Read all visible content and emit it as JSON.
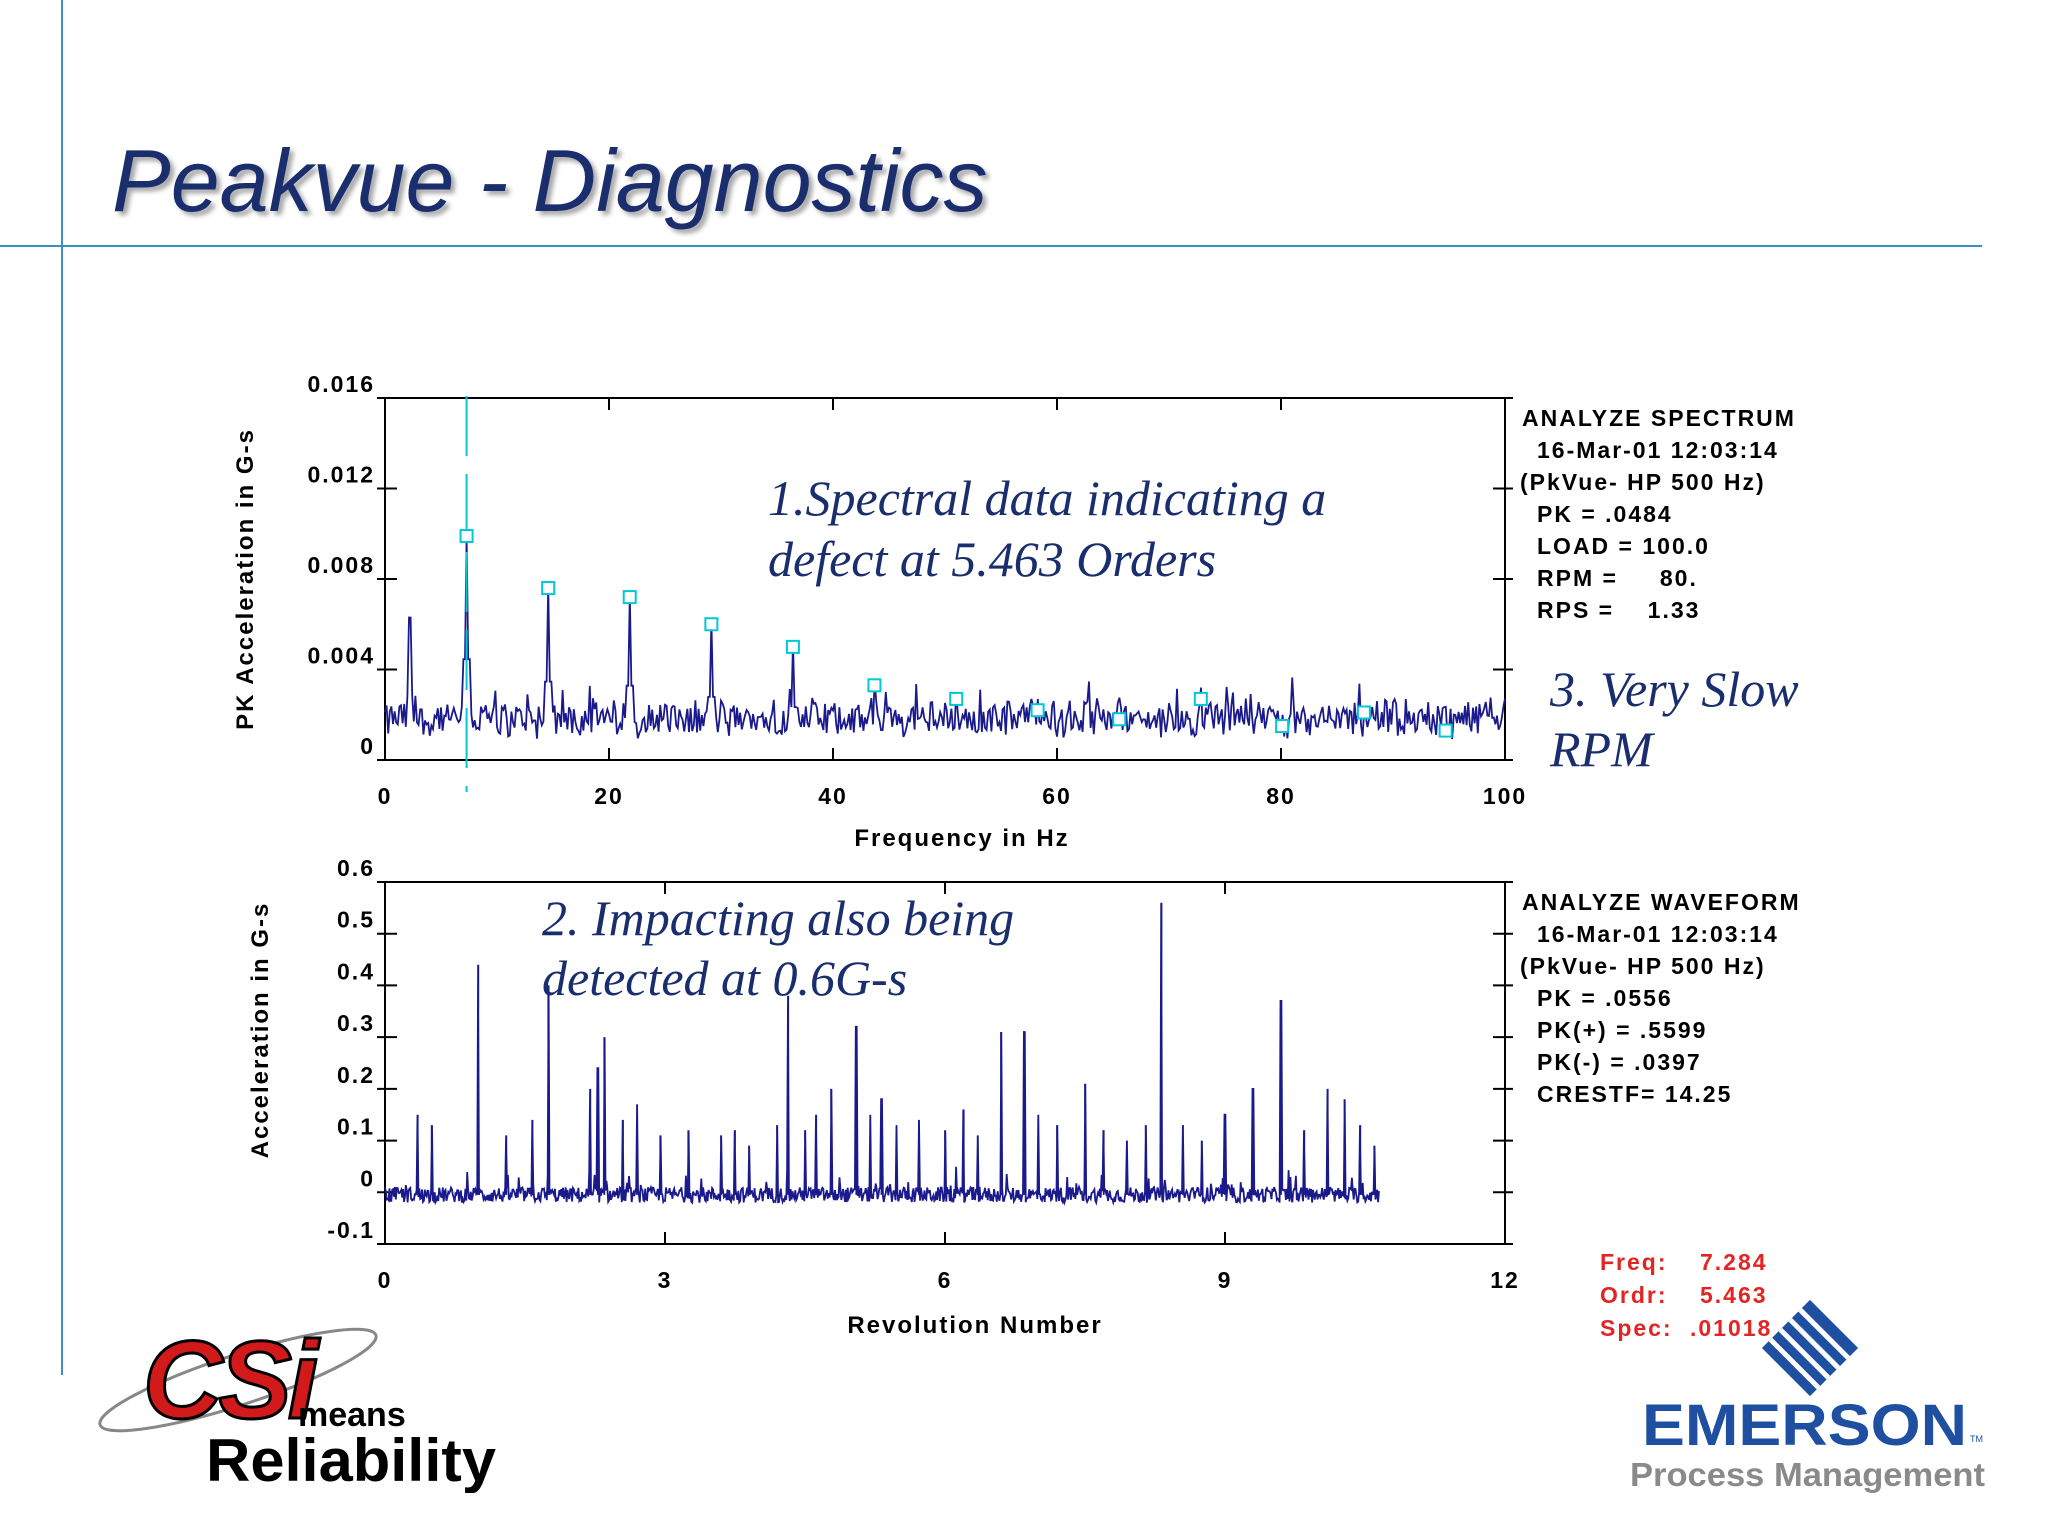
{
  "slide": {
    "title": "Peakvue - Diagnostics"
  },
  "annotations": {
    "spectral": [
      "1.Spectral data indicating a",
      "defect at 5.463 Orders"
    ],
    "impacting": [
      "2. Impacting also being",
      "detected at 0.6G-s"
    ],
    "rpm": [
      "3. Very Slow",
      "RPM"
    ]
  },
  "spectrum_info": [
    "ANALYZE SPECTRUM",
    "16-Mar-01   12:03:14",
    "(PkVue- HP 500 Hz)",
    "PK  =  .0484",
    "LOAD = 100.0",
    "RPM =     80.",
    "RPS =    1.33"
  ],
  "waveform_info": [
    "ANALYZE WAVEFORM",
    "16-Mar-01   12:03:14",
    "(PkVue- HP 500 Hz)",
    "PK  =  .0556",
    "PK(+) = .5599",
    "PK(-) = .0397",
    "CRESTF= 14.25"
  ],
  "cursor_readout": {
    "freq_label": "Freq:",
    "freq_value": "7.284",
    "ordr_label": "Ordr:",
    "ordr_value": "5.463",
    "spec_label": "Spec:",
    "spec_value": ".01018"
  },
  "logos": {
    "csi": {
      "word": "CSi",
      "means": "means",
      "reliability": "Reliability"
    },
    "emerson": {
      "name": "EMERSON",
      "tm": "TM",
      "division": "Process Management"
    }
  },
  "colors": {
    "title": "#1a2e6e",
    "trace": "#1a1a8c",
    "marker": "#00c8d8",
    "cursor_text": "#e32424",
    "rule": "#3a8fc8"
  },
  "chart_data": [
    {
      "type": "line",
      "xlabel": "Frequency in Hz",
      "ylabel": "PK Acceleration in G-s",
      "xlim": [
        0,
        100
      ],
      "ylim": [
        0,
        0.016
      ],
      "xticks": [
        0,
        20,
        40,
        60,
        80,
        100
      ],
      "yticks": [
        0,
        0.004,
        0.008,
        0.012,
        0.016
      ],
      "xtick_labels": [
        "0",
        "20",
        "40",
        "60",
        "80",
        "100"
      ],
      "ytick_labels": [
        "0",
        "0.004",
        "0.008",
        "0.012",
        "0.016"
      ],
      "cursor_x": 7.284,
      "noise_floor": 0.0025,
      "peaks": [
        {
          "x": 2.2,
          "y": 0.0063
        },
        {
          "x": 7.284,
          "y": 0.0099
        },
        {
          "x": 14.57,
          "y": 0.0077
        },
        {
          "x": 21.85,
          "y": 0.0073
        },
        {
          "x": 29.14,
          "y": 0.0062
        },
        {
          "x": 36.42,
          "y": 0.0052
        },
        {
          "x": 43.7,
          "y": 0.0035
        },
        {
          "x": 51.0,
          "y": 0.003
        },
        {
          "x": 58.27,
          "y": 0.0027
        },
        {
          "x": 65.56,
          "y": 0.0024
        },
        {
          "x": 72.84,
          "y": 0.0032
        },
        {
          "x": 80.1,
          "y": 0.002
        },
        {
          "x": 87.4,
          "y": 0.0022
        },
        {
          "x": 94.7,
          "y": 0.0016
        }
      ],
      "harmonic_markers": [
        {
          "x": 7.284,
          "y": 0.0099
        },
        {
          "x": 14.57,
          "y": 0.0076
        },
        {
          "x": 21.85,
          "y": 0.0072
        },
        {
          "x": 29.14,
          "y": 0.006
        },
        {
          "x": 36.42,
          "y": 0.005
        },
        {
          "x": 43.7,
          "y": 0.0033
        },
        {
          "x": 51.0,
          "y": 0.0027
        },
        {
          "x": 58.27,
          "y": 0.0022
        },
        {
          "x": 65.56,
          "y": 0.0018
        },
        {
          "x": 72.84,
          "y": 0.0027
        },
        {
          "x": 80.1,
          "y": 0.0015
        },
        {
          "x": 87.4,
          "y": 0.0021
        },
        {
          "x": 94.7,
          "y": 0.0013
        }
      ]
    },
    {
      "type": "line",
      "xlabel": "Revolution Number",
      "ylabel": "Acceleration in G-s",
      "xlim": [
        0,
        12
      ],
      "ylim": [
        -0.1,
        0.6
      ],
      "xticks": [
        0,
        3,
        6,
        9,
        12
      ],
      "yticks": [
        -0.1,
        0,
        0.1,
        0.2,
        0.3,
        0.4,
        0.5,
        0.6
      ],
      "xtick_labels": [
        "0",
        "3",
        "6",
        "9",
        "12"
      ],
      "ytick_labels": [
        "-0.1",
        "0",
        "0.1",
        "0.2",
        "0.3",
        "0.4",
        "0.5",
        "0.6"
      ],
      "data_end_x": 10.65,
      "baseline": -0.005,
      "impacts": [
        {
          "x": 0.35,
          "y": 0.15
        },
        {
          "x": 0.5,
          "y": 0.13
        },
        {
          "x": 1.0,
          "y": 0.44
        },
        {
          "x": 1.3,
          "y": 0.11
        },
        {
          "x": 1.58,
          "y": 0.14
        },
        {
          "x": 1.75,
          "y": 0.4
        },
        {
          "x": 2.2,
          "y": 0.2
        },
        {
          "x": 2.28,
          "y": 0.24
        },
        {
          "x": 2.35,
          "y": 0.3
        },
        {
          "x": 2.55,
          "y": 0.14
        },
        {
          "x": 2.7,
          "y": 0.17
        },
        {
          "x": 2.95,
          "y": 0.11
        },
        {
          "x": 3.25,
          "y": 0.12
        },
        {
          "x": 3.6,
          "y": 0.11
        },
        {
          "x": 3.75,
          "y": 0.12
        },
        {
          "x": 3.9,
          "y": 0.09
        },
        {
          "x": 4.2,
          "y": 0.13
        },
        {
          "x": 4.32,
          "y": 0.38
        },
        {
          "x": 4.5,
          "y": 0.12
        },
        {
          "x": 4.62,
          "y": 0.15
        },
        {
          "x": 4.78,
          "y": 0.2
        },
        {
          "x": 5.05,
          "y": 0.32
        },
        {
          "x": 5.2,
          "y": 0.15
        },
        {
          "x": 5.32,
          "y": 0.18
        },
        {
          "x": 5.48,
          "y": 0.13
        },
        {
          "x": 5.72,
          "y": 0.14
        },
        {
          "x": 6.0,
          "y": 0.12
        },
        {
          "x": 6.2,
          "y": 0.16
        },
        {
          "x": 6.35,
          "y": 0.11
        },
        {
          "x": 6.6,
          "y": 0.31
        },
        {
          "x": 6.85,
          "y": 0.31
        },
        {
          "x": 7.0,
          "y": 0.15
        },
        {
          "x": 7.2,
          "y": 0.13
        },
        {
          "x": 7.5,
          "y": 0.21
        },
        {
          "x": 7.7,
          "y": 0.12
        },
        {
          "x": 7.95,
          "y": 0.1
        },
        {
          "x": 8.15,
          "y": 0.13
        },
        {
          "x": 8.32,
          "y": 0.56
        },
        {
          "x": 8.55,
          "y": 0.13
        },
        {
          "x": 8.75,
          "y": 0.1
        },
        {
          "x": 9.0,
          "y": 0.15
        },
        {
          "x": 9.3,
          "y": 0.2
        },
        {
          "x": 9.6,
          "y": 0.37
        },
        {
          "x": 9.85,
          "y": 0.12
        },
        {
          "x": 10.1,
          "y": 0.2
        },
        {
          "x": 10.28,
          "y": 0.18
        },
        {
          "x": 10.45,
          "y": 0.13
        },
        {
          "x": 10.6,
          "y": 0.09
        }
      ]
    }
  ]
}
